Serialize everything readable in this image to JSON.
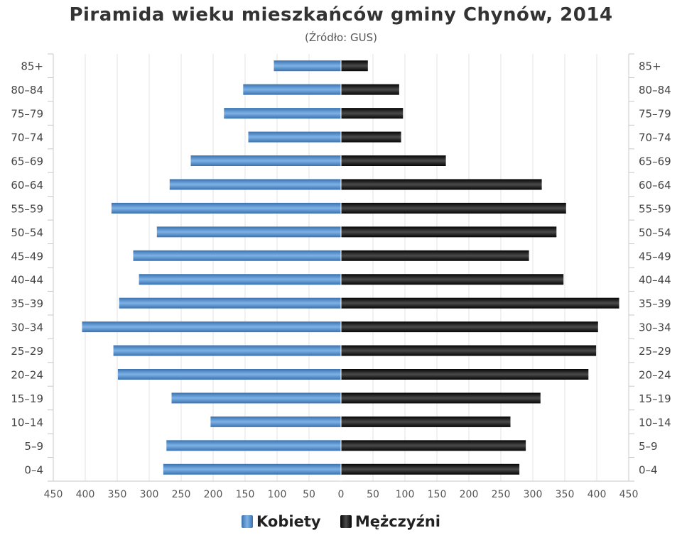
{
  "chart_data": {
    "type": "bar",
    "orientation": "horizontal",
    "title": "Piramida wieku mieszkańców gminy Chynów, 2014",
    "subtitle": "(Źródło: GUS)",
    "categories": [
      "85+",
      "80-84",
      "75-79",
      "70-74",
      "65-69",
      "60-64",
      "55-59",
      "50-54",
      "45-49",
      "40-44",
      "35-39",
      "30-34",
      "25-29",
      "20-24",
      "15-19",
      "10-14",
      "5-9",
      "0-4"
    ],
    "series": [
      {
        "name": "Kobiety",
        "color": "#4a86c5",
        "values": [
          105,
          153,
          183,
          145,
          235,
          268,
          359,
          288,
          325,
          316,
          347,
          405,
          356,
          349,
          265,
          204,
          273,
          278
        ]
      },
      {
        "name": "Mężczyźni",
        "color": "#1a1a1a",
        "values": [
          42,
          91,
          97,
          94,
          164,
          314,
          352,
          337,
          294,
          348,
          435,
          402,
          399,
          387,
          312,
          265,
          289,
          279
        ]
      }
    ],
    "xticks": [
      "450",
      "400",
      "350",
      "300",
      "250",
      "200",
      "150",
      "100",
      "50",
      "0",
      "50",
      "100",
      "150",
      "200",
      "250",
      "300",
      "350",
      "400",
      "450"
    ],
    "xlim": [
      -450,
      450
    ],
    "grid": true,
    "legend_position": "bottom"
  }
}
